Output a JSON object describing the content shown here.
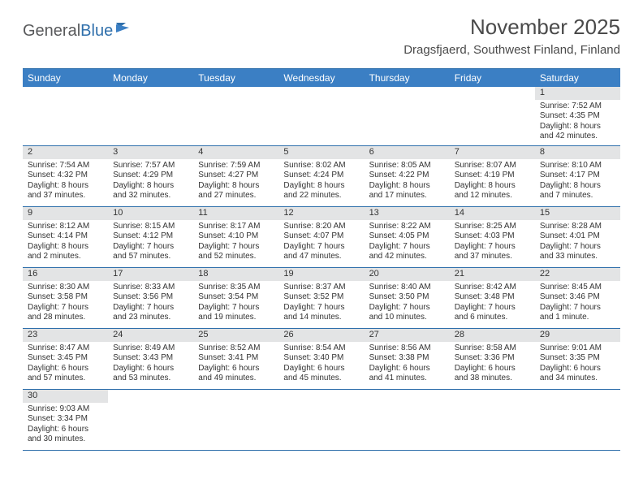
{
  "logo": {
    "general": "General",
    "blue": "Blue"
  },
  "title": "November 2025",
  "location": "Dragsfjaerd, Southwest Finland, Finland",
  "colors": {
    "header_bg": "#3b7fc4",
    "header_text": "#ffffff",
    "border": "#2f6fab",
    "daynum_bg": "#e3e4e5",
    "body_text": "#333333",
    "logo_gray": "#58595b",
    "logo_blue": "#2f6fab"
  },
  "weekdays": [
    "Sunday",
    "Monday",
    "Tuesday",
    "Wednesday",
    "Thursday",
    "Friday",
    "Saturday"
  ],
  "weeks": [
    [
      null,
      null,
      null,
      null,
      null,
      null,
      {
        "n": "1",
        "sr": "Sunrise: 7:52 AM",
        "ss": "Sunset: 4:35 PM",
        "dl": "Daylight: 8 hours and 42 minutes."
      }
    ],
    [
      {
        "n": "2",
        "sr": "Sunrise: 7:54 AM",
        "ss": "Sunset: 4:32 PM",
        "dl": "Daylight: 8 hours and 37 minutes."
      },
      {
        "n": "3",
        "sr": "Sunrise: 7:57 AM",
        "ss": "Sunset: 4:29 PM",
        "dl": "Daylight: 8 hours and 32 minutes."
      },
      {
        "n": "4",
        "sr": "Sunrise: 7:59 AM",
        "ss": "Sunset: 4:27 PM",
        "dl": "Daylight: 8 hours and 27 minutes."
      },
      {
        "n": "5",
        "sr": "Sunrise: 8:02 AM",
        "ss": "Sunset: 4:24 PM",
        "dl": "Daylight: 8 hours and 22 minutes."
      },
      {
        "n": "6",
        "sr": "Sunrise: 8:05 AM",
        "ss": "Sunset: 4:22 PM",
        "dl": "Daylight: 8 hours and 17 minutes."
      },
      {
        "n": "7",
        "sr": "Sunrise: 8:07 AM",
        "ss": "Sunset: 4:19 PM",
        "dl": "Daylight: 8 hours and 12 minutes."
      },
      {
        "n": "8",
        "sr": "Sunrise: 8:10 AM",
        "ss": "Sunset: 4:17 PM",
        "dl": "Daylight: 8 hours and 7 minutes."
      }
    ],
    [
      {
        "n": "9",
        "sr": "Sunrise: 8:12 AM",
        "ss": "Sunset: 4:14 PM",
        "dl": "Daylight: 8 hours and 2 minutes."
      },
      {
        "n": "10",
        "sr": "Sunrise: 8:15 AM",
        "ss": "Sunset: 4:12 PM",
        "dl": "Daylight: 7 hours and 57 minutes."
      },
      {
        "n": "11",
        "sr": "Sunrise: 8:17 AM",
        "ss": "Sunset: 4:10 PM",
        "dl": "Daylight: 7 hours and 52 minutes."
      },
      {
        "n": "12",
        "sr": "Sunrise: 8:20 AM",
        "ss": "Sunset: 4:07 PM",
        "dl": "Daylight: 7 hours and 47 minutes."
      },
      {
        "n": "13",
        "sr": "Sunrise: 8:22 AM",
        "ss": "Sunset: 4:05 PM",
        "dl": "Daylight: 7 hours and 42 minutes."
      },
      {
        "n": "14",
        "sr": "Sunrise: 8:25 AM",
        "ss": "Sunset: 4:03 PM",
        "dl": "Daylight: 7 hours and 37 minutes."
      },
      {
        "n": "15",
        "sr": "Sunrise: 8:28 AM",
        "ss": "Sunset: 4:01 PM",
        "dl": "Daylight: 7 hours and 33 minutes."
      }
    ],
    [
      {
        "n": "16",
        "sr": "Sunrise: 8:30 AM",
        "ss": "Sunset: 3:58 PM",
        "dl": "Daylight: 7 hours and 28 minutes."
      },
      {
        "n": "17",
        "sr": "Sunrise: 8:33 AM",
        "ss": "Sunset: 3:56 PM",
        "dl": "Daylight: 7 hours and 23 minutes."
      },
      {
        "n": "18",
        "sr": "Sunrise: 8:35 AM",
        "ss": "Sunset: 3:54 PM",
        "dl": "Daylight: 7 hours and 19 minutes."
      },
      {
        "n": "19",
        "sr": "Sunrise: 8:37 AM",
        "ss": "Sunset: 3:52 PM",
        "dl": "Daylight: 7 hours and 14 minutes."
      },
      {
        "n": "20",
        "sr": "Sunrise: 8:40 AM",
        "ss": "Sunset: 3:50 PM",
        "dl": "Daylight: 7 hours and 10 minutes."
      },
      {
        "n": "21",
        "sr": "Sunrise: 8:42 AM",
        "ss": "Sunset: 3:48 PM",
        "dl": "Daylight: 7 hours and 6 minutes."
      },
      {
        "n": "22",
        "sr": "Sunrise: 8:45 AM",
        "ss": "Sunset: 3:46 PM",
        "dl": "Daylight: 7 hours and 1 minute."
      }
    ],
    [
      {
        "n": "23",
        "sr": "Sunrise: 8:47 AM",
        "ss": "Sunset: 3:45 PM",
        "dl": "Daylight: 6 hours and 57 minutes."
      },
      {
        "n": "24",
        "sr": "Sunrise: 8:49 AM",
        "ss": "Sunset: 3:43 PM",
        "dl": "Daylight: 6 hours and 53 minutes."
      },
      {
        "n": "25",
        "sr": "Sunrise: 8:52 AM",
        "ss": "Sunset: 3:41 PM",
        "dl": "Daylight: 6 hours and 49 minutes."
      },
      {
        "n": "26",
        "sr": "Sunrise: 8:54 AM",
        "ss": "Sunset: 3:40 PM",
        "dl": "Daylight: 6 hours and 45 minutes."
      },
      {
        "n": "27",
        "sr": "Sunrise: 8:56 AM",
        "ss": "Sunset: 3:38 PM",
        "dl": "Daylight: 6 hours and 41 minutes."
      },
      {
        "n": "28",
        "sr": "Sunrise: 8:58 AM",
        "ss": "Sunset: 3:36 PM",
        "dl": "Daylight: 6 hours and 38 minutes."
      },
      {
        "n": "29",
        "sr": "Sunrise: 9:01 AM",
        "ss": "Sunset: 3:35 PM",
        "dl": "Daylight: 6 hours and 34 minutes."
      }
    ],
    [
      {
        "n": "30",
        "sr": "Sunrise: 9:03 AM",
        "ss": "Sunset: 3:34 PM",
        "dl": "Daylight: 6 hours and 30 minutes."
      },
      null,
      null,
      null,
      null,
      null,
      null
    ]
  ]
}
